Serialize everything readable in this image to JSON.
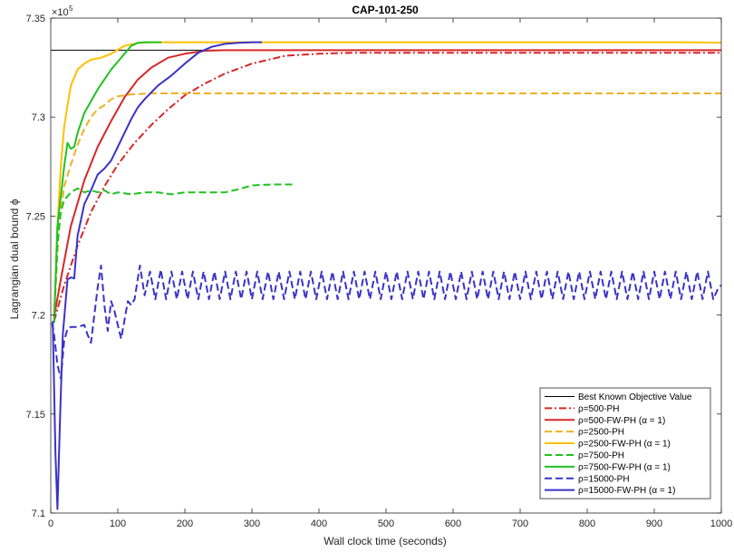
{
  "chart_data": {
    "type": "line",
    "title": "CAP-101-250",
    "xlabel": "Wall clock time (seconds)",
    "ylabel": "Lagrangian dual bound ϕ",
    "y_exponent_label": "×10",
    "y_exponent_power": "5",
    "xlim": [
      0,
      1000
    ],
    "ylim": [
      7.1,
      7.35
    ],
    "x_ticks": [
      0,
      100,
      200,
      300,
      400,
      500,
      600,
      700,
      800,
      900,
      1000
    ],
    "x_tick_labels": [
      "0",
      "100",
      "200",
      "300",
      "400",
      "500",
      "600",
      "700",
      "800",
      "900",
      "1000"
    ],
    "y_ticks": [
      7.1,
      7.15,
      7.2,
      7.25,
      7.3,
      7.35
    ],
    "y_tick_labels": [
      "7.1",
      "7.15",
      "7.2",
      "7.25",
      "7.3",
      "7.35"
    ],
    "grid": false,
    "legend_position": "bottom-right",
    "series": [
      {
        "name": "Best Known Objective Value",
        "color": "#000000",
        "dash": "solid",
        "points": [
          [
            0,
            7.3338
          ],
          [
            1000,
            7.3338
          ]
        ]
      },
      {
        "name": "ρ=500-PH",
        "color": "#d62728",
        "dash": "dashdot",
        "points": [
          [
            5,
            7.197
          ],
          [
            20,
            7.215
          ],
          [
            40,
            7.235
          ],
          [
            60,
            7.252
          ],
          [
            80,
            7.265
          ],
          [
            100,
            7.276
          ],
          [
            125,
            7.287
          ],
          [
            150,
            7.296
          ],
          [
            175,
            7.304
          ],
          [
            200,
            7.311
          ],
          [
            230,
            7.317
          ],
          [
            260,
            7.322
          ],
          [
            300,
            7.327
          ],
          [
            350,
            7.331
          ],
          [
            400,
            7.332
          ],
          [
            450,
            7.3325
          ],
          [
            500,
            7.3325
          ],
          [
            600,
            7.3325
          ],
          [
            700,
            7.3325
          ],
          [
            800,
            7.3325
          ],
          [
            900,
            7.3325
          ],
          [
            1000,
            7.3325
          ]
        ]
      },
      {
        "name": "ρ=500-FW-PH (α = 1)",
        "color": "#d62728",
        "dash": "solid",
        "points": [
          [
            5,
            7.199
          ],
          [
            15,
            7.218
          ],
          [
            30,
            7.245
          ],
          [
            50,
            7.268
          ],
          [
            70,
            7.285
          ],
          [
            90,
            7.298
          ],
          [
            110,
            7.31
          ],
          [
            130,
            7.319
          ],
          [
            150,
            7.325
          ],
          [
            175,
            7.33
          ],
          [
            200,
            7.332
          ],
          [
            230,
            7.3335
          ],
          [
            260,
            7.3338
          ],
          [
            300,
            7.3338
          ],
          [
            400,
            7.3338
          ],
          [
            500,
            7.3338
          ],
          [
            600,
            7.3338
          ],
          [
            700,
            7.3338
          ],
          [
            800,
            7.3338
          ],
          [
            900,
            7.3338
          ],
          [
            1000,
            7.3338
          ]
        ]
      },
      {
        "name": "ρ=2500-PH",
        "color": "#edb120",
        "dash": "dashed",
        "points": [
          [
            5,
            7.199
          ],
          [
            12,
            7.245
          ],
          [
            20,
            7.265
          ],
          [
            30,
            7.276
          ],
          [
            40,
            7.286
          ],
          [
            50,
            7.294
          ],
          [
            60,
            7.3
          ],
          [
            70,
            7.304
          ],
          [
            80,
            7.306
          ],
          [
            90,
            7.309
          ],
          [
            100,
            7.3105
          ],
          [
            120,
            7.3115
          ],
          [
            150,
            7.312
          ],
          [
            200,
            7.312
          ],
          [
            300,
            7.312
          ],
          [
            400,
            7.312
          ],
          [
            500,
            7.312
          ],
          [
            600,
            7.312
          ],
          [
            700,
            7.312
          ],
          [
            800,
            7.312
          ],
          [
            900,
            7.312
          ],
          [
            1000,
            7.312
          ]
        ]
      },
      {
        "name": "ρ=2500-FW-PH (α = 1)",
        "color": "#ffc000",
        "dash": "solid",
        "points": [
          [
            5,
            7.199
          ],
          [
            10,
            7.245
          ],
          [
            15,
            7.275
          ],
          [
            20,
            7.295
          ],
          [
            25,
            7.306
          ],
          [
            30,
            7.316
          ],
          [
            40,
            7.324
          ],
          [
            50,
            7.327
          ],
          [
            60,
            7.329
          ],
          [
            75,
            7.33
          ],
          [
            90,
            7.332
          ],
          [
            100,
            7.334
          ],
          [
            110,
            7.336
          ],
          [
            130,
            7.3375
          ],
          [
            150,
            7.3378
          ],
          [
            200,
            7.3378
          ],
          [
            300,
            7.3378
          ],
          [
            400,
            7.3378
          ],
          [
            500,
            7.3378
          ],
          [
            600,
            7.3378
          ],
          [
            700,
            7.3378
          ],
          [
            800,
            7.3378
          ],
          [
            900,
            7.3378
          ],
          [
            945,
            7.3378
          ],
          [
            1000,
            7.3376
          ]
        ]
      },
      {
        "name": "ρ=7500-PH",
        "color": "#1fc21f",
        "dash": "dashed",
        "points": [
          [
            5,
            7.199
          ],
          [
            10,
            7.235
          ],
          [
            15,
            7.252
          ],
          [
            20,
            7.258
          ],
          [
            30,
            7.262
          ],
          [
            40,
            7.264
          ],
          [
            50,
            7.262
          ],
          [
            60,
            7.263
          ],
          [
            70,
            7.262
          ],
          [
            80,
            7.263
          ],
          [
            90,
            7.261
          ],
          [
            100,
            7.262
          ],
          [
            120,
            7.261
          ],
          [
            140,
            7.262
          ],
          [
            160,
            7.262
          ],
          [
            180,
            7.261
          ],
          [
            200,
            7.262
          ],
          [
            220,
            7.262
          ],
          [
            240,
            7.262
          ],
          [
            260,
            7.262
          ],
          [
            280,
            7.2635
          ],
          [
            300,
            7.2655
          ],
          [
            330,
            7.266
          ],
          [
            365,
            7.266
          ]
        ]
      },
      {
        "name": "ρ=7500-FW-PH (α = 1)",
        "color": "#1fc21f",
        "dash": "solid",
        "points": [
          [
            5,
            7.196
          ],
          [
            10,
            7.245
          ],
          [
            15,
            7.26
          ],
          [
            20,
            7.275
          ],
          [
            25,
            7.287
          ],
          [
            30,
            7.284
          ],
          [
            35,
            7.285
          ],
          [
            40,
            7.292
          ],
          [
            50,
            7.302
          ],
          [
            60,
            7.308
          ],
          [
            70,
            7.314
          ],
          [
            80,
            7.319
          ],
          [
            90,
            7.324
          ],
          [
            100,
            7.328
          ],
          [
            110,
            7.332
          ],
          [
            120,
            7.336
          ],
          [
            130,
            7.3375
          ],
          [
            140,
            7.3378
          ],
          [
            150,
            7.3378
          ],
          [
            165,
            7.3378
          ]
        ]
      },
      {
        "name": "ρ=15000-PH",
        "color": "#3b32c8",
        "dash": "dashed",
        "points": [
          [
            2,
            7.196
          ],
          [
            5,
            7.19
          ],
          [
            10,
            7.175
          ],
          [
            15,
            7.168
          ],
          [
            20,
            7.187
          ],
          [
            25,
            7.193
          ],
          [
            30,
            7.194
          ],
          [
            40,
            7.194
          ],
          [
            50,
            7.195
          ],
          [
            55,
            7.19
          ],
          [
            60,
            7.186
          ],
          [
            65,
            7.2
          ],
          [
            70,
            7.214
          ],
          [
            75,
            7.225
          ],
          [
            80,
            7.205
          ],
          [
            85,
            7.192
          ],
          [
            90,
            7.207
          ],
          [
            95,
            7.202
          ],
          [
            100,
            7.195
          ],
          [
            105,
            7.188
          ],
          [
            115,
            7.207
          ],
          [
            120,
            7.205
          ],
          [
            125,
            7.208
          ],
          [
            133,
            7.225
          ],
          [
            140,
            7.21
          ],
          [
            148,
            7.222
          ],
          [
            156,
            7.208
          ],
          [
            164,
            7.223
          ],
          [
            172,
            7.208
          ],
          [
            180,
            7.222
          ],
          [
            188,
            7.208
          ],
          [
            196,
            7.222
          ],
          [
            204,
            7.208
          ],
          [
            212,
            7.222
          ],
          [
            220,
            7.208
          ],
          [
            228,
            7.222
          ],
          [
            236,
            7.208
          ],
          [
            244,
            7.222
          ],
          [
            252,
            7.208
          ],
          [
            260,
            7.222
          ],
          [
            268,
            7.208
          ],
          [
            276,
            7.222
          ],
          [
            284,
            7.208
          ],
          [
            292,
            7.222
          ],
          [
            300,
            7.208
          ],
          [
            308,
            7.222
          ],
          [
            316,
            7.208
          ],
          [
            324,
            7.222
          ],
          [
            332,
            7.208
          ],
          [
            340,
            7.222
          ],
          [
            348,
            7.208
          ],
          [
            356,
            7.222
          ],
          [
            364,
            7.208
          ],
          [
            372,
            7.222
          ],
          [
            380,
            7.208
          ],
          [
            388,
            7.222
          ],
          [
            396,
            7.208
          ],
          [
            404,
            7.222
          ],
          [
            412,
            7.208
          ],
          [
            420,
            7.222
          ],
          [
            428,
            7.208
          ],
          [
            436,
            7.222
          ],
          [
            444,
            7.208
          ],
          [
            452,
            7.222
          ],
          [
            460,
            7.208
          ],
          [
            468,
            7.222
          ],
          [
            476,
            7.208
          ],
          [
            484,
            7.222
          ],
          [
            492,
            7.208
          ],
          [
            500,
            7.222
          ],
          [
            508,
            7.208
          ],
          [
            516,
            7.222
          ],
          [
            524,
            7.208
          ],
          [
            532,
            7.222
          ],
          [
            540,
            7.208
          ],
          [
            548,
            7.222
          ],
          [
            556,
            7.208
          ],
          [
            564,
            7.222
          ],
          [
            572,
            7.208
          ],
          [
            580,
            7.222
          ],
          [
            588,
            7.208
          ],
          [
            596,
            7.222
          ],
          [
            604,
            7.208
          ],
          [
            612,
            7.222
          ],
          [
            620,
            7.208
          ],
          [
            628,
            7.222
          ],
          [
            636,
            7.208
          ],
          [
            644,
            7.222
          ],
          [
            652,
            7.208
          ],
          [
            660,
            7.222
          ],
          [
            668,
            7.208
          ],
          [
            676,
            7.222
          ],
          [
            684,
            7.208
          ],
          [
            692,
            7.222
          ],
          [
            700,
            7.208
          ],
          [
            708,
            7.222
          ],
          [
            716,
            7.208
          ],
          [
            724,
            7.222
          ],
          [
            732,
            7.208
          ],
          [
            740,
            7.222
          ],
          [
            748,
            7.208
          ],
          [
            756,
            7.222
          ],
          [
            764,
            7.208
          ],
          [
            772,
            7.222
          ],
          [
            780,
            7.208
          ],
          [
            788,
            7.222
          ],
          [
            796,
            7.208
          ],
          [
            804,
            7.222
          ],
          [
            812,
            7.208
          ],
          [
            820,
            7.222
          ],
          [
            828,
            7.208
          ],
          [
            836,
            7.222
          ],
          [
            844,
            7.208
          ],
          [
            852,
            7.222
          ],
          [
            860,
            7.208
          ],
          [
            868,
            7.222
          ],
          [
            876,
            7.208
          ],
          [
            884,
            7.222
          ],
          [
            892,
            7.208
          ],
          [
            900,
            7.222
          ],
          [
            908,
            7.208
          ],
          [
            916,
            7.222
          ],
          [
            924,
            7.208
          ],
          [
            932,
            7.222
          ],
          [
            940,
            7.208
          ],
          [
            948,
            7.222
          ],
          [
            956,
            7.208
          ],
          [
            964,
            7.222
          ],
          [
            972,
            7.208
          ],
          [
            980,
            7.222
          ],
          [
            988,
            7.208
          ],
          [
            996,
            7.214
          ],
          [
            1000,
            7.215
          ]
        ]
      },
      {
        "name": "ρ=15000-FW-PH (α = 1)",
        "color": "#3b32c8",
        "dash": "solid",
        "points": [
          [
            3,
            7.197
          ],
          [
            7,
            7.13
          ],
          [
            10,
            7.102
          ],
          [
            14,
            7.15
          ],
          [
            18,
            7.19
          ],
          [
            25,
            7.218
          ],
          [
            30,
            7.219
          ],
          [
            35,
            7.2185
          ],
          [
            40,
            7.24
          ],
          [
            50,
            7.256
          ],
          [
            60,
            7.263
          ],
          [
            70,
            7.271
          ],
          [
            80,
            7.274
          ],
          [
            90,
            7.278
          ],
          [
            100,
            7.285
          ],
          [
            110,
            7.292
          ],
          [
            120,
            7.299
          ],
          [
            130,
            7.305
          ],
          [
            140,
            7.309
          ],
          [
            160,
            7.316
          ],
          [
            180,
            7.321
          ],
          [
            200,
            7.327
          ],
          [
            220,
            7.3325
          ],
          [
            240,
            7.3355
          ],
          [
            260,
            7.337
          ],
          [
            280,
            7.3375
          ],
          [
            300,
            7.3378
          ],
          [
            315,
            7.3378
          ]
        ]
      }
    ]
  }
}
